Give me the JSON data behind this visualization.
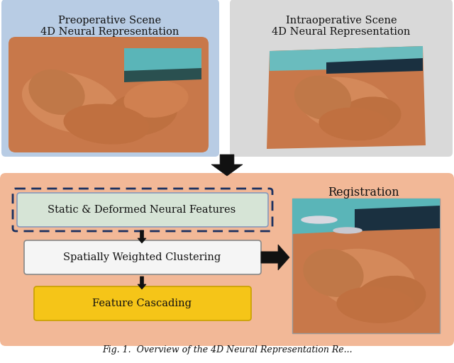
{
  "bg_color": "#ffffff",
  "top_left_box_color": "#b8cce4",
  "top_right_box_color": "#d9d9d9",
  "bottom_box_color": "#f2b897",
  "box1_text_line1": "Preoperative Scene",
  "box1_text_line2": "4D Neural Representation",
  "box2_text_line1": "Intraoperative Scene",
  "box2_text_line2": "4D Neural Representation",
  "registration_label": "Registration",
  "step1_label": "Static & Deformed Neural Features",
  "step2_label": "Spatially Weighted Clustering",
  "step3_label": "Feature Cascading",
  "step1_box_color": "#d6e4d6",
  "step1_border_color": "#1a3060",
  "step2_box_color": "#f5f5f5",
  "step2_border_color": "#888888",
  "step3_box_color": "#f5c518",
  "step3_border_color": "#c8a000",
  "caption": "Fig. 1.  Overview of the 4D Neural Representation Re...",
  "font_size_title": 10.5,
  "font_size_box": 10,
  "font_size_caption": 9
}
